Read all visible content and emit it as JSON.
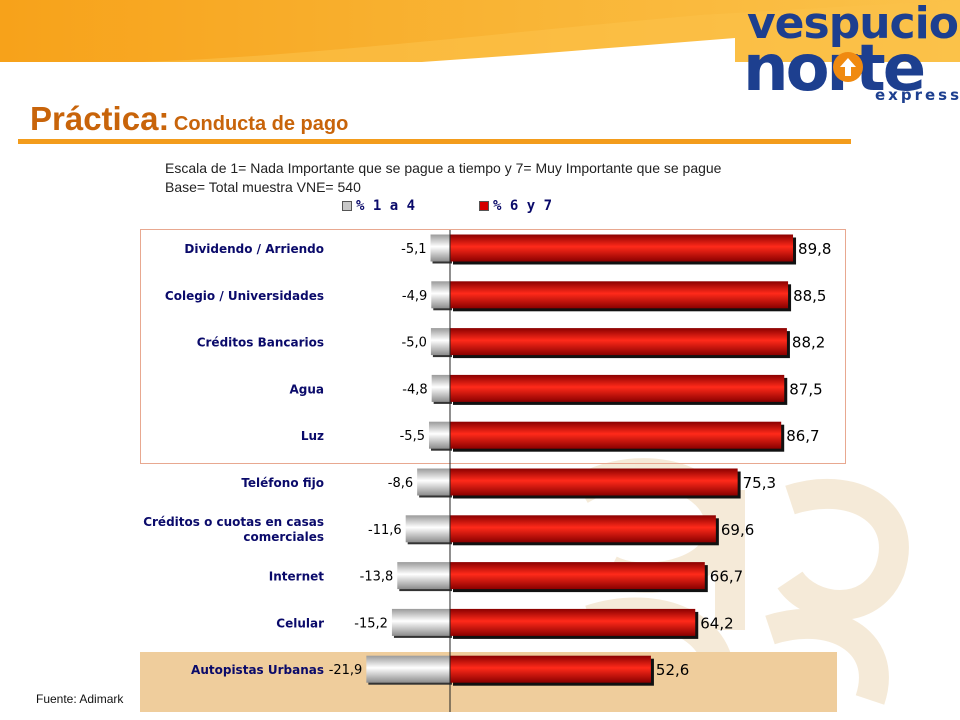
{
  "brand": {
    "line1": "vespucio",
    "line2": "norte",
    "line3": "express"
  },
  "title": {
    "main": "Práctica:",
    "sub": "Conducta de pago"
  },
  "notes": [
    "Escala de 1= Nada Importante que se pague a tiempo y 7= Muy Importante que se pague",
    "Base= Total muestra VNE= 540"
  ],
  "source": "Fuente: Adimark",
  "colors": {
    "accent": "#f39c1c",
    "title": "#c8640a",
    "brand": "#1d3f8f",
    "red": "#d40000",
    "grey": "#c8c8c8"
  },
  "chart_data": {
    "type": "bar",
    "orientation": "horizontal-diverging",
    "categories": [
      "Dividendo / Arriendo",
      "Colegio / Universidades",
      "Créditos Bancarios",
      "Agua",
      "Luz",
      "Teléfono fijo",
      "Créditos o cuotas en casas comerciales",
      "Internet",
      "Celular",
      "Autopistas Urbanas"
    ],
    "series": [
      {
        "name": "% 1 a 4",
        "color": "#c8c8c8",
        "values": [
          -5.1,
          -4.9,
          -5.0,
          -4.8,
          -5.5,
          -8.6,
          -11.6,
          -13.8,
          -15.2,
          -21.9
        ],
        "labels": [
          "-5,1",
          "-4,9",
          "-5,0",
          "-4,8",
          "-5,5",
          "-8,6",
          "-11,6",
          "-13,8",
          "-15,2",
          "-21,9"
        ]
      },
      {
        "name": "% 6 y 7",
        "color": "#d40000",
        "values": [
          89.8,
          88.5,
          88.2,
          87.5,
          86.7,
          75.3,
          69.6,
          66.7,
          64.2,
          52.6
        ],
        "labels": [
          "89,8",
          "88,5",
          "88,2",
          "87,5",
          "86,7",
          "75,3",
          "69,6",
          "66,7",
          "64,2",
          "52,6"
        ]
      }
    ]
  }
}
